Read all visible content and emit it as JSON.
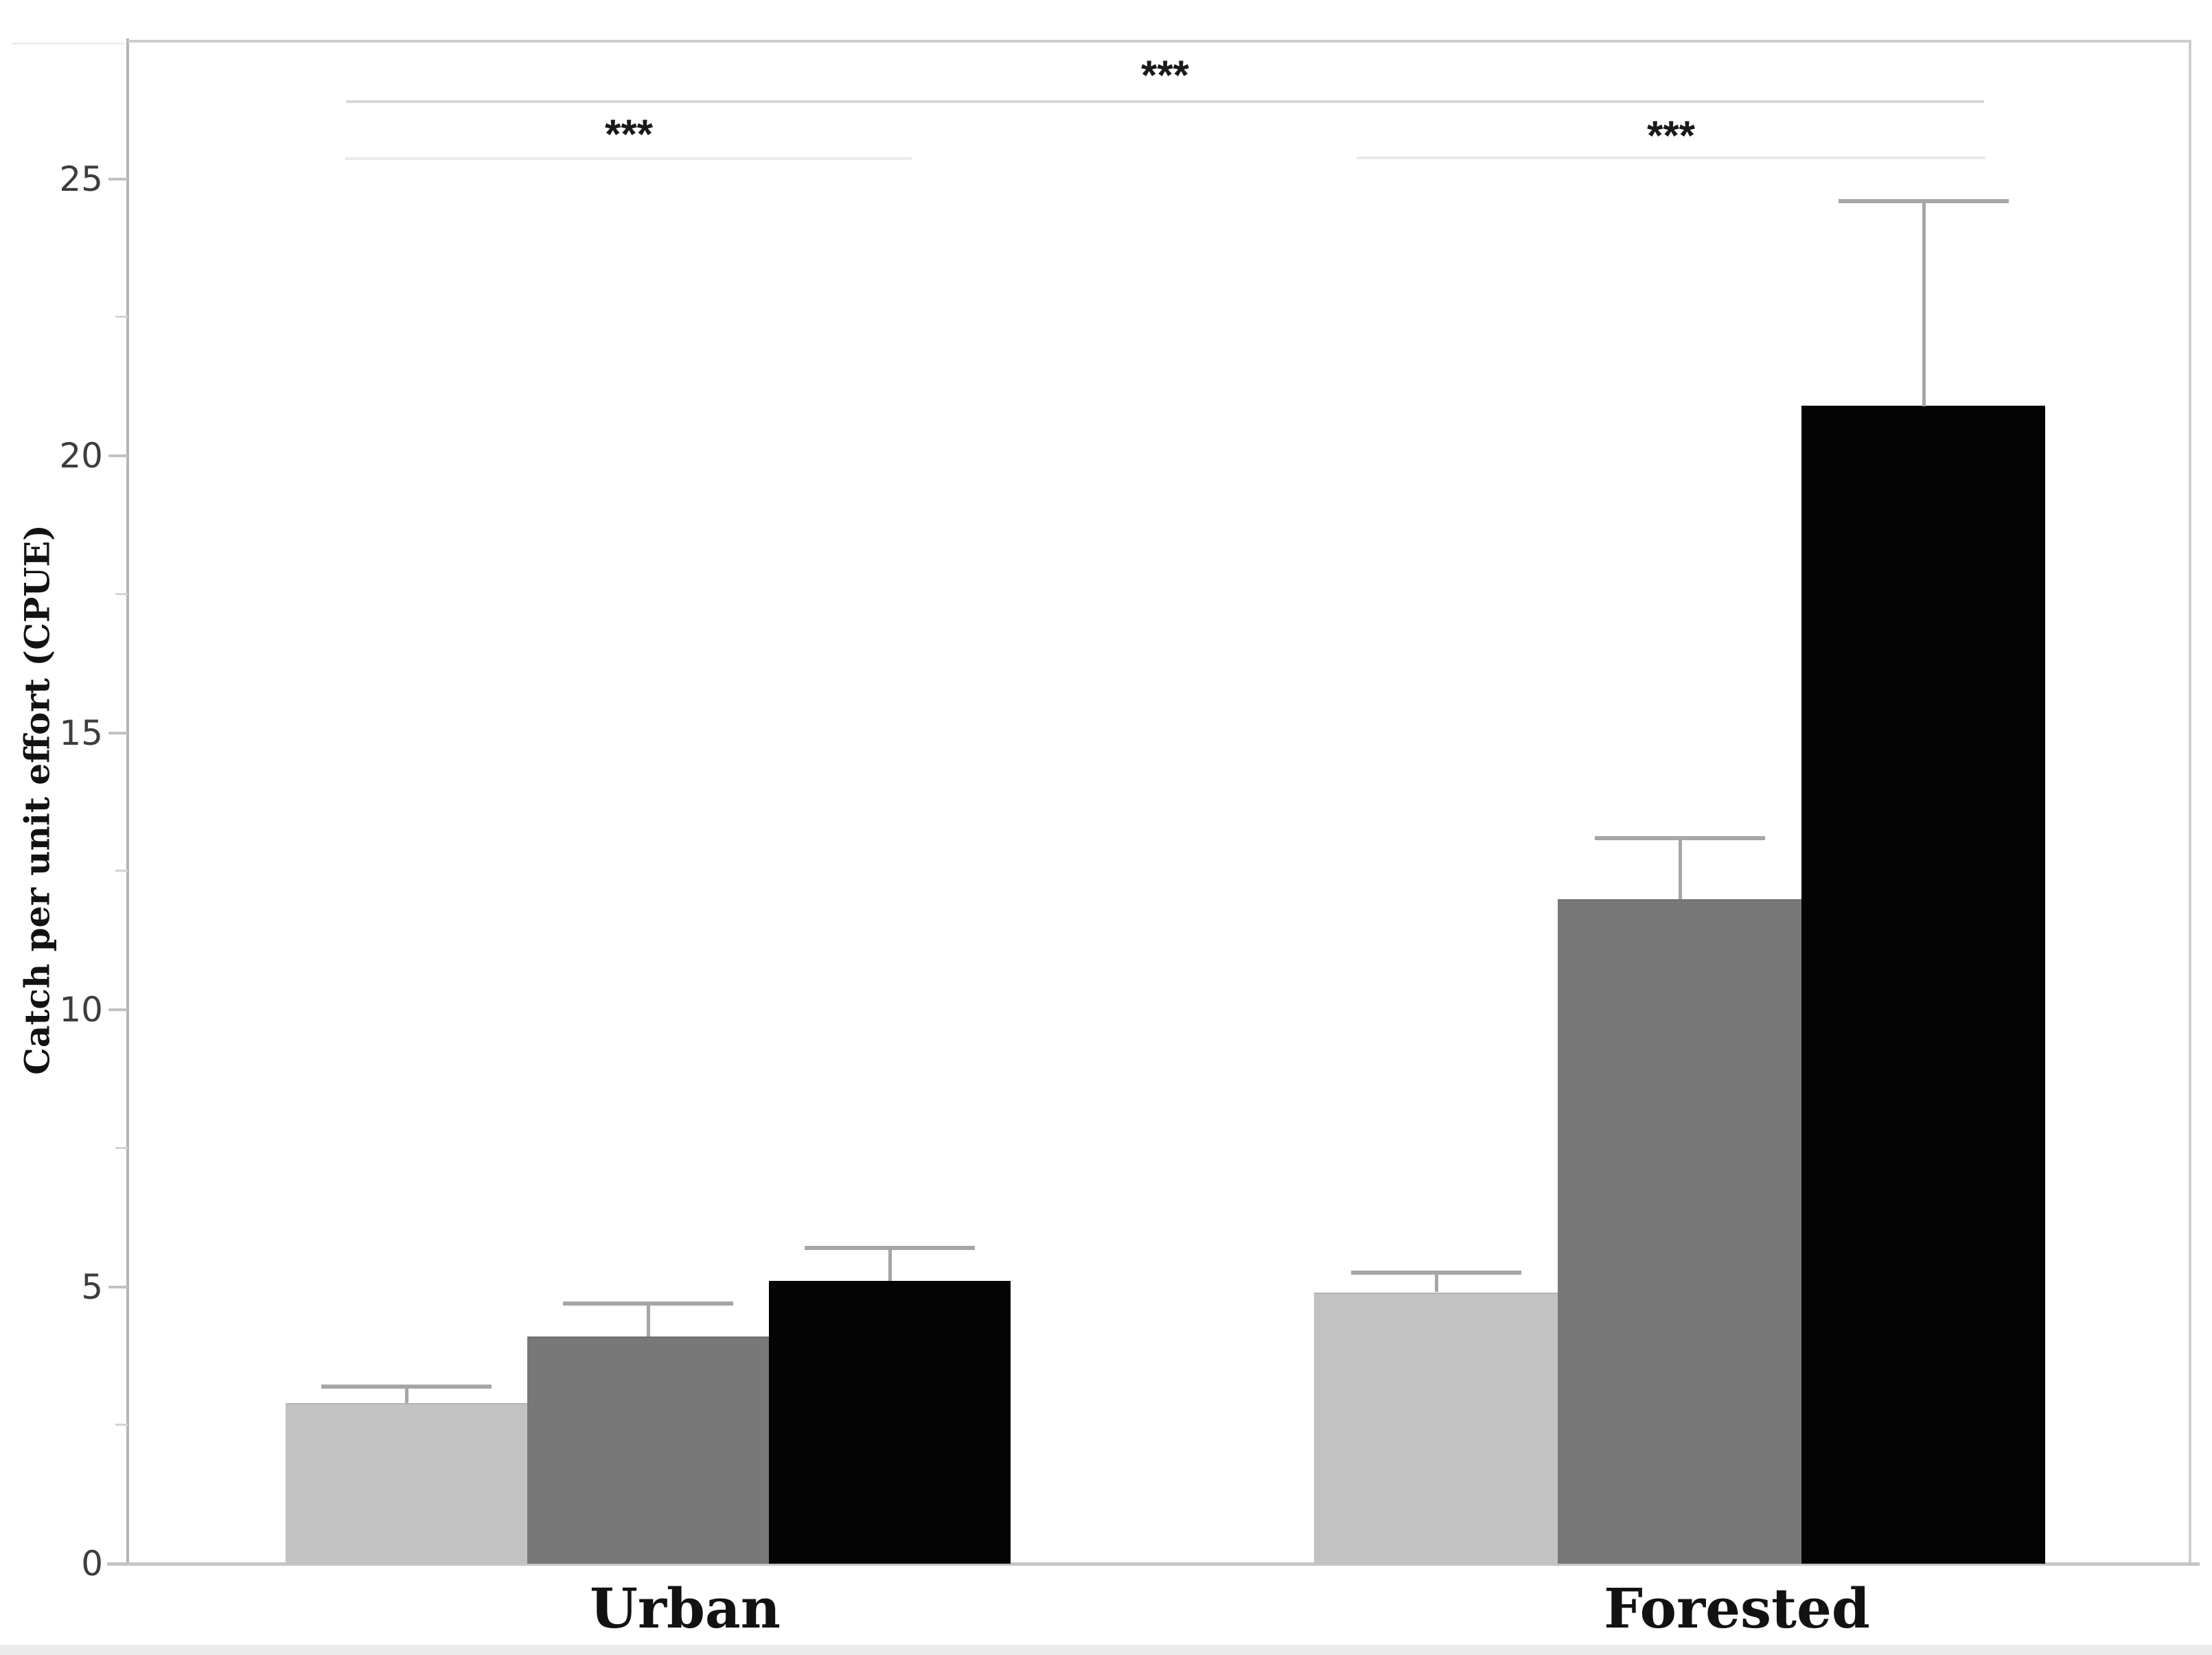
{
  "chart_data": {
    "type": "bar",
    "title": "",
    "xlabel": "",
    "ylabel": "Catch per unit effort (CPUE)",
    "categories": [
      "Urban",
      "Forested"
    ],
    "series": [
      {
        "name": "light-gray",
        "color": "#c2c2c2",
        "values": [
          2.9,
          4.9
        ],
        "error_tops": [
          3.2,
          5.25
        ]
      },
      {
        "name": "medium-gray",
        "color": "#787878",
        "values": [
          4.1,
          12.0
        ],
        "error_tops": [
          4.7,
          13.1
        ]
      },
      {
        "name": "black",
        "color": "#040404",
        "values": [
          5.1,
          20.9
        ],
        "error_tops": [
          5.7,
          24.6
        ]
      }
    ],
    "ylim": [
      0,
      27.46
    ],
    "yticks_major": [
      0,
      5,
      10,
      15,
      20,
      25
    ],
    "yticks_minor": [
      2.5,
      7.5,
      12.5,
      17.5,
      22.5
    ],
    "grid": false,
    "legend": "none",
    "error_bars": "upper-only",
    "significance": [
      {
        "label": "***",
        "compares": "Urban vs Forested",
        "x1": 504,
        "x2": 2890,
        "line_y": 146,
        "star_center_y": 103,
        "line_color": "#d7d7d7"
      },
      {
        "label": "***",
        "compares": "within Urban",
        "x1": 503,
        "x2": 1328,
        "line_y": 229,
        "star_center_y": 189,
        "line_color": "#ebebeb"
      },
      {
        "label": "***",
        "compares": "within Forested",
        "x1": 1976,
        "x2": 2892,
        "line_y": 228,
        "star_center_y": 191,
        "line_color": "#e8e8e8"
      }
    ]
  },
  "colors": {
    "background": "#ffffff",
    "axis": "#b4b4b4",
    "frame": "#cdcdcd",
    "baseline": "#c6c6c6",
    "tick": "#c2c2c2",
    "minor_tick": "#d4d4d4",
    "error_bar": "#a6a6a6",
    "tick_label": "#3d3d3d",
    "label_text": "#121212",
    "stars": "#1a1a1a",
    "edge_artifact": "#ebebeb"
  }
}
